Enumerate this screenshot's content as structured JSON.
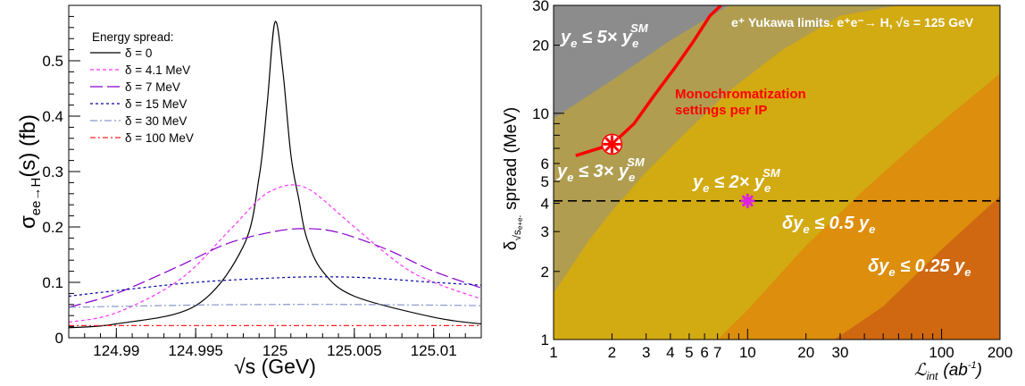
{
  "chart_data": [
    {
      "type": "line",
      "xlabel": "√s (GeV)",
      "ylabel_main": "σ",
      "ylabel_sub": "ee→H",
      "ylabel_rest": "(s) (fb)",
      "xlim": [
        124.987,
        125.013
      ],
      "ylim": [
        0,
        0.6
      ],
      "x_ticks": [
        "124.99",
        "124.995",
        "125",
        "125.005",
        "125.01"
      ],
      "y_ticks": [
        "0",
        "0.1",
        "0.2",
        "0.3",
        "0.4",
        "0.5"
      ],
      "legend_title": "Energy spread:",
      "legend_placement": "top-left",
      "series": [
        {
          "name": "δ = 0",
          "color": "#000000",
          "dash": "solid",
          "x": [
            124.987,
            124.99,
            124.995,
            124.998,
            124.999,
            124.9995,
            125.0,
            125.0005,
            125.001,
            125.0015,
            125.002,
            125.003,
            125.005,
            125.01,
            125.013
          ],
          "values": [
            0.018,
            0.025,
            0.058,
            0.165,
            0.29,
            0.42,
            0.57,
            0.48,
            0.33,
            0.25,
            0.18,
            0.12,
            0.075,
            0.037,
            0.025
          ]
        },
        {
          "name": "δ = 4.1 MeV",
          "color": "#ff33ff",
          "dash": "4,3",
          "x": [
            124.987,
            124.99,
            124.994,
            124.997,
            124.999,
            125.0,
            125.001,
            125.002,
            125.003,
            125.005,
            125.008,
            125.01,
            125.013
          ],
          "values": [
            0.028,
            0.045,
            0.105,
            0.19,
            0.25,
            0.268,
            0.276,
            0.27,
            0.25,
            0.2,
            0.13,
            0.1,
            0.07
          ]
        },
        {
          "name": "δ = 7 MeV",
          "color": "#8800cc",
          "dash": "14,5",
          "x": [
            124.987,
            124.99,
            124.994,
            124.997,
            125.0,
            125.002,
            125.004,
            125.007,
            125.01,
            125.013
          ],
          "values": [
            0.055,
            0.08,
            0.13,
            0.17,
            0.192,
            0.197,
            0.19,
            0.16,
            0.12,
            0.09
          ]
        },
        {
          "name": "δ = 15 MeV",
          "color": "#0000aa",
          "dash": "3,3",
          "x": [
            124.987,
            124.99,
            124.995,
            125.0,
            125.003,
            125.006,
            125.01,
            125.013
          ],
          "values": [
            0.075,
            0.085,
            0.1,
            0.108,
            0.11,
            0.108,
            0.1,
            0.095
          ]
        },
        {
          "name": "δ = 30 MeV",
          "color": "#8899cc",
          "dash": "8,3,2,3",
          "x": [
            124.987,
            124.995,
            125.0,
            125.005,
            125.013
          ],
          "values": [
            0.055,
            0.059,
            0.06,
            0.06,
            0.058
          ]
        },
        {
          "name": "δ = 100 MeV",
          "color": "#ff2222",
          "dash": "6,3,2,3",
          "x": [
            124.987,
            125.013
          ],
          "values": [
            0.022,
            0.022
          ]
        }
      ]
    },
    {
      "type": "heatmap",
      "xlabel_main": "ℒ",
      "xlabel_sub": "int",
      "xlabel_unit": "(ab",
      "xlabel_exp": "-1",
      "xlabel_close": ")",
      "ylabel_main": "δ",
      "ylabel_sub": "√s",
      "ylabel_subsub": "e+e-",
      "ylabel_rest": "spread (MeV)",
      "xscale": "log",
      "yscale": "log",
      "xlim": [
        1,
        200
      ],
      "ylim": [
        1,
        30
      ],
      "x_ticks": [
        {
          "v": 1,
          "label": "1"
        },
        {
          "v": 2,
          "label": "2"
        },
        {
          "v": 3,
          "label": "3"
        },
        {
          "v": 4,
          "label": "4"
        },
        {
          "v": 5,
          "label": "5"
        },
        {
          "v": 6,
          "label": "6"
        },
        {
          "v": 7,
          "label": "7"
        },
        {
          "v": 10,
          "label": "10"
        },
        {
          "v": 20,
          "label": "20"
        },
        {
          "v": 30,
          "label": "30"
        },
        {
          "v": 100,
          "label": "100"
        },
        {
          "v": 200,
          "label": "200"
        }
      ],
      "y_ticks": [
        {
          "v": 1,
          "label": "1"
        },
        {
          "v": 2,
          "label": "2"
        },
        {
          "v": 3,
          "label": "3"
        },
        {
          "v": 4,
          "label": "4"
        },
        {
          "v": 5,
          "label": "5"
        },
        {
          "v": 6,
          "label": "6"
        },
        {
          "v": 10,
          "label": "10"
        },
        {
          "v": 20,
          "label": "20"
        },
        {
          "v": 30,
          "label": "30"
        }
      ],
      "regions": [
        {
          "label": "y_e ≤ 5×y_e^SM",
          "color": "#8c8c8c"
        },
        {
          "label": "y_e ≤ 3×y_e^SM",
          "color": "#b09d50"
        },
        {
          "label": "y_e ≤ 2×y_e^SM",
          "color": "#d2aa12"
        },
        {
          "label": "δy_e ≤ 0.5 y_e",
          "color": "#dc8e0c"
        },
        {
          "label": "δy_e ≤ 0.25 y_e",
          "color": "#cf6810"
        }
      ],
      "boundaries": [
        {
          "x": [
            1,
            2,
            4,
            8
          ],
          "y": [
            9.5,
            14,
            21,
            30
          ]
        },
        {
          "x": [
            1,
            1.5,
            2,
            3,
            5,
            8,
            15,
            30,
            60
          ],
          "y": [
            1.6,
            2.7,
            3.7,
            5.5,
            8.5,
            12.5,
            19,
            27,
            30
          ]
        },
        {
          "x": [
            7,
            10,
            20,
            40,
            80,
            200
          ],
          "y": [
            1,
            1.35,
            2.6,
            4.6,
            7.8,
            15
          ]
        },
        {
          "x": [
            28,
            50,
            100,
            200
          ],
          "y": [
            1,
            1.4,
            2.5,
            4.3
          ]
        }
      ],
      "monochromatization_curve": {
        "color": "#ff0000",
        "x": [
          1.3,
          2,
          2.6,
          3.3,
          4.2,
          5.2,
          6.4,
          7.3
        ],
        "y": [
          6.5,
          7.3,
          9,
          12,
          15.8,
          20.5,
          27,
          30
        ]
      },
      "hline_y": 4.1,
      "markers": [
        {
          "x": 2,
          "y": 7.3,
          "color": "#ff0000",
          "shape": "open-star"
        },
        {
          "x": 10,
          "y": 4.1,
          "color": "#dd22dd",
          "shape": "asterisk"
        }
      ],
      "title_text": "e⁺ Yukawa limits. e⁺e⁻→ H, √s = 125 GeV",
      "curve_label_1": "Monochromatization",
      "curve_label_2": "settings per IP",
      "annotations": {
        "r5": {
          "a": "y",
          "b": "e",
          "c": " ≤ 5× y",
          "d": "e",
          "e": "SM"
        },
        "r3": {
          "a": "y",
          "b": "e",
          "c": " ≤ 3× y",
          "d": "e",
          "e": "SM"
        },
        "r2": {
          "a": "y",
          "b": "e",
          "c": " ≤ 2× y",
          "d": "e",
          "e": "SM"
        },
        "r05": {
          "a": "δy",
          "b": "e",
          "c": " ≤ 0.5 y",
          "d": "e"
        },
        "r025": {
          "a": "δy",
          "b": "e",
          "c": " ≤ 0.25 y",
          "d": "e"
        }
      }
    }
  ]
}
